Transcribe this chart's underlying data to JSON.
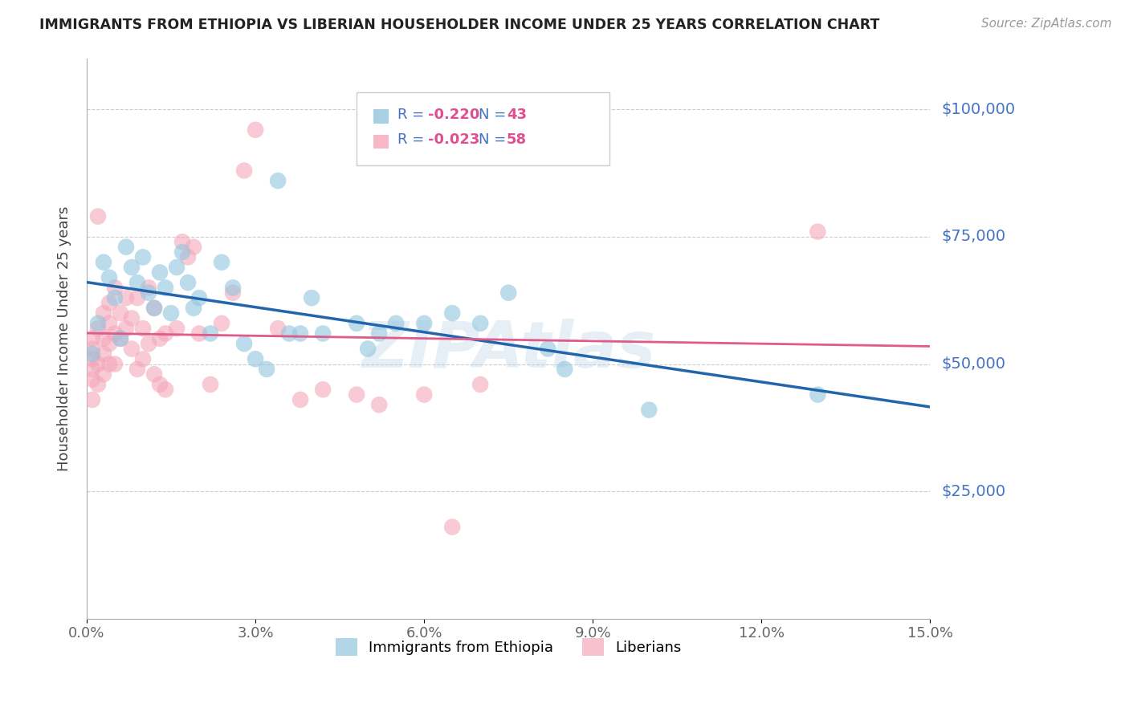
{
  "title": "IMMIGRANTS FROM ETHIOPIA VS LIBERIAN HOUSEHOLDER INCOME UNDER 25 YEARS CORRELATION CHART",
  "source": "Source: ZipAtlas.com",
  "ylabel": "Householder Income Under 25 years",
  "xlabel_ticks": [
    "0.0%",
    "3.0%",
    "6.0%",
    "9.0%",
    "12.0%",
    "15.0%"
  ],
  "xlabel_vals": [
    0.0,
    0.03,
    0.06,
    0.09,
    0.12,
    0.15
  ],
  "ylim": [
    0,
    110000
  ],
  "xlim": [
    0,
    0.15
  ],
  "yticks": [
    25000,
    50000,
    75000,
    100000
  ],
  "ytick_labels": [
    "$25,000",
    "$50,000",
    "$75,000",
    "$100,000"
  ],
  "legend_labels": [
    "Immigrants from Ethiopia",
    "Liberians"
  ],
  "blue_color": "#92c5de",
  "pink_color": "#f4a7b9",
  "trendline_blue": "#2166ac",
  "trendline_pink": "#e05a8a",
  "watermark": "ZIPAtlas",
  "blue_r": "-0.220",
  "blue_n": "43",
  "pink_r": "-0.023",
  "pink_n": "58",
  "blue_scatter": [
    [
      0.001,
      52000
    ],
    [
      0.002,
      58000
    ],
    [
      0.003,
      70000
    ],
    [
      0.004,
      67000
    ],
    [
      0.005,
      63000
    ],
    [
      0.006,
      55000
    ],
    [
      0.007,
      73000
    ],
    [
      0.008,
      69000
    ],
    [
      0.009,
      66000
    ],
    [
      0.01,
      71000
    ],
    [
      0.011,
      64000
    ],
    [
      0.012,
      61000
    ],
    [
      0.013,
      68000
    ],
    [
      0.014,
      65000
    ],
    [
      0.015,
      60000
    ],
    [
      0.016,
      69000
    ],
    [
      0.017,
      72000
    ],
    [
      0.018,
      66000
    ],
    [
      0.019,
      61000
    ],
    [
      0.02,
      63000
    ],
    [
      0.022,
      56000
    ],
    [
      0.024,
      70000
    ],
    [
      0.026,
      65000
    ],
    [
      0.028,
      54000
    ],
    [
      0.03,
      51000
    ],
    [
      0.032,
      49000
    ],
    [
      0.034,
      86000
    ],
    [
      0.036,
      56000
    ],
    [
      0.038,
      56000
    ],
    [
      0.04,
      63000
    ],
    [
      0.042,
      56000
    ],
    [
      0.048,
      58000
    ],
    [
      0.05,
      53000
    ],
    [
      0.052,
      56000
    ],
    [
      0.055,
      58000
    ],
    [
      0.06,
      58000
    ],
    [
      0.065,
      60000
    ],
    [
      0.07,
      58000
    ],
    [
      0.075,
      64000
    ],
    [
      0.082,
      53000
    ],
    [
      0.085,
      49000
    ],
    [
      0.1,
      41000
    ],
    [
      0.13,
      44000
    ]
  ],
  "pink_scatter": [
    [
      0.001,
      53000
    ],
    [
      0.001,
      49000
    ],
    [
      0.001,
      47000
    ],
    [
      0.001,
      43000
    ],
    [
      0.001,
      55000
    ],
    [
      0.001,
      51000
    ],
    [
      0.002,
      57000
    ],
    [
      0.002,
      50000
    ],
    [
      0.002,
      46000
    ],
    [
      0.002,
      79000
    ],
    [
      0.003,
      60000
    ],
    [
      0.003,
      55000
    ],
    [
      0.003,
      52000
    ],
    [
      0.003,
      48000
    ],
    [
      0.004,
      62000
    ],
    [
      0.004,
      58000
    ],
    [
      0.004,
      54000
    ],
    [
      0.004,
      50000
    ],
    [
      0.005,
      65000
    ],
    [
      0.005,
      56000
    ],
    [
      0.005,
      50000
    ],
    [
      0.006,
      60000
    ],
    [
      0.006,
      55000
    ],
    [
      0.007,
      63000
    ],
    [
      0.007,
      57000
    ],
    [
      0.008,
      59000
    ],
    [
      0.008,
      53000
    ],
    [
      0.009,
      63000
    ],
    [
      0.009,
      49000
    ],
    [
      0.01,
      57000
    ],
    [
      0.01,
      51000
    ],
    [
      0.011,
      65000
    ],
    [
      0.011,
      54000
    ],
    [
      0.012,
      61000
    ],
    [
      0.012,
      48000
    ],
    [
      0.013,
      55000
    ],
    [
      0.013,
      46000
    ],
    [
      0.014,
      56000
    ],
    [
      0.014,
      45000
    ],
    [
      0.016,
      57000
    ],
    [
      0.017,
      74000
    ],
    [
      0.018,
      71000
    ],
    [
      0.019,
      73000
    ],
    [
      0.02,
      56000
    ],
    [
      0.022,
      46000
    ],
    [
      0.024,
      58000
    ],
    [
      0.026,
      64000
    ],
    [
      0.028,
      88000
    ],
    [
      0.03,
      96000
    ],
    [
      0.034,
      57000
    ],
    [
      0.038,
      43000
    ],
    [
      0.042,
      45000
    ],
    [
      0.048,
      44000
    ],
    [
      0.052,
      42000
    ],
    [
      0.06,
      44000
    ],
    [
      0.065,
      18000
    ],
    [
      0.07,
      46000
    ],
    [
      0.13,
      76000
    ]
  ]
}
